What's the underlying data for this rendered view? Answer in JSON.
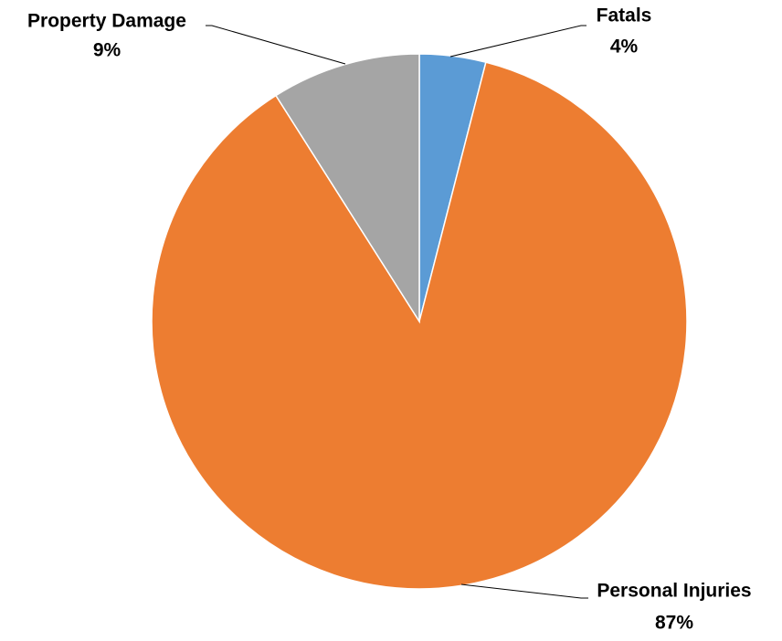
{
  "chart_data": {
    "type": "pie",
    "categories": [
      "Fatals",
      "Personal Injuries",
      "Property Damage"
    ],
    "values": [
      4,
      87,
      9
    ],
    "value_labels": [
      "4%",
      "87%",
      "9%"
    ],
    "colors": [
      "#5b9bd5",
      "#ed7d31",
      "#a5a5a5"
    ]
  }
}
